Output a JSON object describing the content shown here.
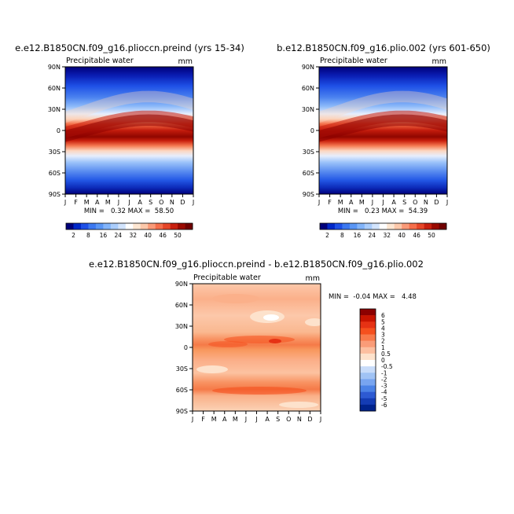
{
  "chart_data": [
    {
      "id": "panel1",
      "type": "heatmap",
      "title": "e.e12.B1850CN.f09_g16.plioccn.preind (yrs 15-34)",
      "variable": "Precipitable water",
      "units": "mm",
      "x_ticks": [
        "J",
        "F",
        "M",
        "A",
        "M",
        "J",
        "J",
        "A",
        "S",
        "O",
        "N",
        "D",
        "J"
      ],
      "y_ticks": [
        "90N",
        "60N",
        "30N",
        "0",
        "30S",
        "60S",
        "90S"
      ],
      "stats_text": "MIN =   0.32 MAX =  58.50",
      "min": 0.32,
      "max": 58.5
    },
    {
      "id": "panel2",
      "type": "heatmap",
      "title": "b.e12.B1850CN.f09_g16.plio.002 (yrs 601-650)",
      "variable": "Precipitable water",
      "units": "mm",
      "x_ticks": [
        "J",
        "F",
        "M",
        "A",
        "M",
        "J",
        "J",
        "A",
        "S",
        "O",
        "N",
        "D",
        "J"
      ],
      "y_ticks": [
        "90N",
        "60N",
        "30N",
        "0",
        "30S",
        "60S",
        "90S"
      ],
      "stats_text": "MIN =   0.23 MAX =  54.39",
      "min": 0.23,
      "max": 54.39
    },
    {
      "id": "panel3",
      "type": "heatmap",
      "title": "e.e12.B1850CN.f09_g16.plioccn.preind - b.e12.B1850CN.f09_g16.plio.002",
      "variable": "Precipitable water",
      "units": "mm",
      "x_ticks": [
        "J",
        "F",
        "M",
        "A",
        "M",
        "J",
        "J",
        "A",
        "S",
        "O",
        "N",
        "D",
        "J"
      ],
      "y_ticks": [
        "90N",
        "60N",
        "30N",
        "0",
        "30S",
        "60S",
        "90S"
      ],
      "stats_text": "MIN =  -0.04 MAX =   4.48",
      "min": -0.04,
      "max": 4.48
    }
  ],
  "colorbar_main": {
    "labels": [
      "2",
      "8",
      "16",
      "24",
      "32",
      "40",
      "46",
      "50"
    ],
    "colors": [
      "#00007a",
      "#0028c8",
      "#1e50e6",
      "#3c78f0",
      "#5a96f5",
      "#82b4fa",
      "#aacdfc",
      "#d2e4fd",
      "#ffffff",
      "#fde6d2",
      "#fcc8aa",
      "#fa9a78",
      "#f56e4b",
      "#e64628",
      "#c8200f",
      "#9a0a00",
      "#700000"
    ]
  },
  "colorbar_diff": {
    "labels": [
      "6",
      "5",
      "4",
      "3",
      "2",
      "1",
      "0.5",
      "0",
      "-0.5",
      "-1",
      "-2",
      "-3",
      "-4",
      "-5",
      "-6"
    ],
    "colors": [
      "#8c0000",
      "#c81400",
      "#e63214",
      "#f5501e",
      "#f87a4b",
      "#fa9c78",
      "#fcbfa0",
      "#fde2cc",
      "#ffffff",
      "#c8dcfa",
      "#a0c3f5",
      "#78a5f0",
      "#4b82e6",
      "#2d5ad2",
      "#143cb4",
      "#00238c"
    ]
  }
}
